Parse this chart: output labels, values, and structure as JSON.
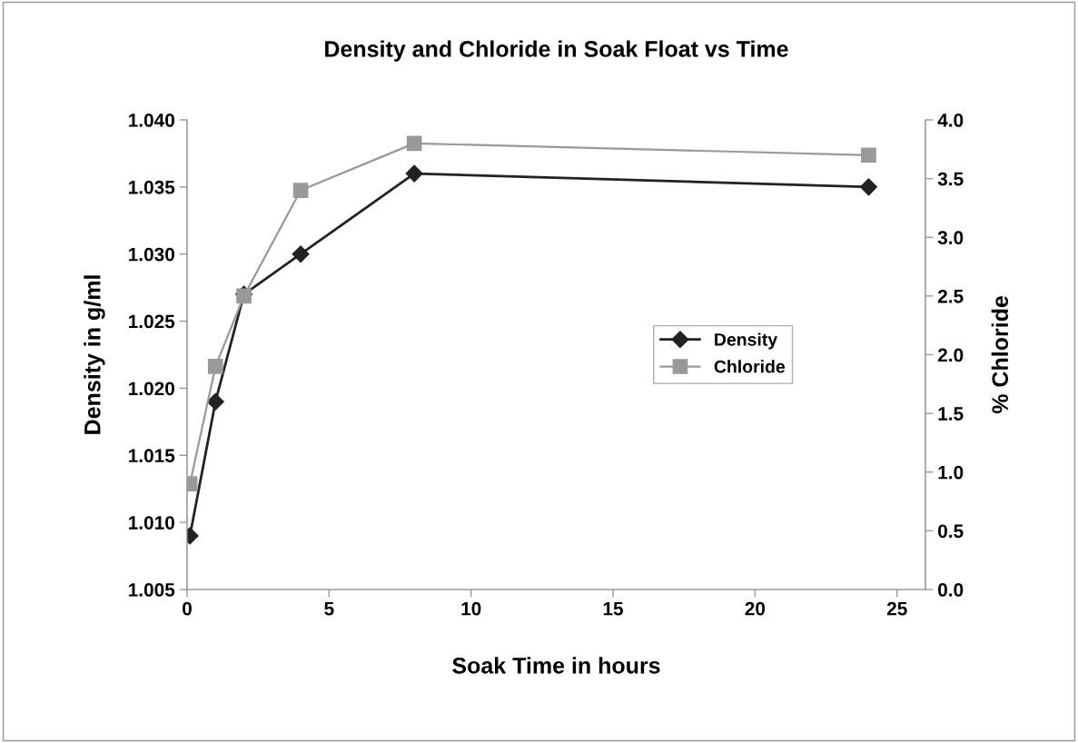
{
  "chart_data": {
    "type": "line",
    "title": "Density and Chloride in Soak Float vs Time",
    "xlabel": "Soak Time in hours",
    "ylabel": "Density in g/ml",
    "y2label": "% Chloride",
    "x": [
      0.1,
      1,
      2,
      4,
      8,
      24
    ],
    "series": [
      {
        "name": "Density",
        "color": "#222222",
        "marker": "diamond",
        "values": [
          1.009,
          1.019,
          1.027,
          1.03,
          1.036,
          1.035
        ]
      },
      {
        "name": "Chloride",
        "color": "#999999",
        "marker": "square",
        "axis": "y2",
        "values": [
          0.9,
          1.9,
          2.5,
          3.4,
          3.8,
          3.7
        ]
      }
    ],
    "xlim": [
      0,
      26
    ],
    "xticks": [
      0,
      5,
      10,
      15,
      20,
      25
    ],
    "ylim": [
      1.005,
      1.04
    ],
    "yticks": [
      {
        "value": 1.005,
        "label": "1.005"
      },
      {
        "value": 1.01,
        "label": "1.010"
      },
      {
        "value": 1.015,
        "label": "1.015"
      },
      {
        "value": 1.02,
        "label": "1.020"
      },
      {
        "value": 1.025,
        "label": "1.025"
      },
      {
        "value": 1.03,
        "label": "1.030"
      },
      {
        "value": 1.035,
        "label": "1.035"
      },
      {
        "value": 1.04,
        "label": "1.040"
      }
    ],
    "y2lim": [
      0,
      4
    ],
    "y2ticks": [
      {
        "value": 0,
        "label": "0.0"
      },
      {
        "value": 0.5,
        "label": "0.5"
      },
      {
        "value": 1,
        "label": "1.0"
      },
      {
        "value": 1.5,
        "label": "1.5"
      },
      {
        "value": 2,
        "label": "2.0"
      },
      {
        "value": 2.5,
        "label": "2.5"
      },
      {
        "value": 3,
        "label": "3.0"
      },
      {
        "value": 3.5,
        "label": "3.5"
      },
      {
        "value": 4,
        "label": "4.0"
      }
    ],
    "grid": false,
    "legend": "right"
  }
}
